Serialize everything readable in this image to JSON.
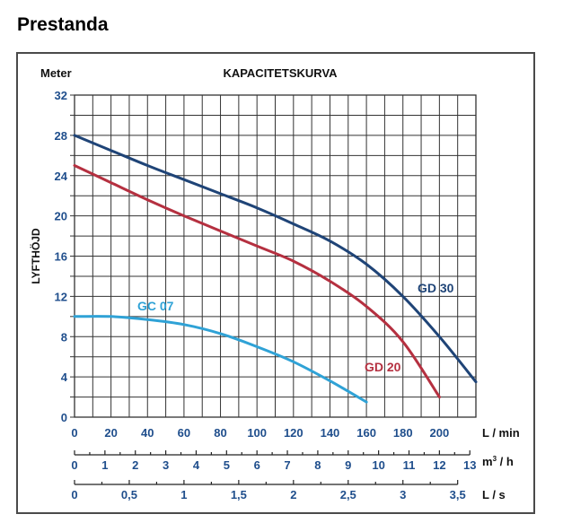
{
  "page": {
    "heading": "Prestanda"
  },
  "colors": {
    "gd30": "#1f4477",
    "gd20": "#b53040",
    "gc07": "#2fa2d6",
    "axis_text": "#1f4e8c",
    "grid": "#333333"
  },
  "chart_data": {
    "type": "line",
    "title": "KAPACITETSKURVA",
    "ylabel": "LYFTHÖJD",
    "yunit": "Meter",
    "ylim": [
      0,
      32
    ],
    "xlim": [
      0,
      220
    ],
    "yticks": [
      "0",
      "4",
      "8",
      "12",
      "16",
      "20",
      "24",
      "28",
      "32"
    ],
    "xticks": [
      "0",
      "20",
      "40",
      "60",
      "80",
      "100",
      "120",
      "140",
      "160",
      "180",
      "200"
    ],
    "xunit": "L / min",
    "secondary_axes": [
      {
        "unit": "m3 / h",
        "unit_base": "m",
        "unit_sup": "3",
        "unit_rest": " / h",
        "factor": 16.6667,
        "ticks": [
          "0",
          "1",
          "2",
          "3",
          "4",
          "5",
          "6",
          "7",
          "8",
          "9",
          "10",
          "11",
          "12",
          "13"
        ]
      },
      {
        "unit": "L / s",
        "factor": 60,
        "ticks": [
          "0",
          "0,5",
          "1",
          "1,5",
          "2",
          "2,5",
          "3",
          "3,5"
        ]
      }
    ],
    "series": [
      {
        "name": "GD 30",
        "color": "#1f4477",
        "x": [
          0,
          20,
          40,
          60,
          80,
          100,
          120,
          140,
          160,
          180,
          200,
          220
        ],
        "y": [
          28,
          26.5,
          25,
          23.6,
          22.2,
          20.8,
          19.2,
          17.5,
          15.2,
          12,
          8,
          3.5
        ]
      },
      {
        "name": "GD 20",
        "color": "#b53040",
        "x": [
          0,
          20,
          40,
          60,
          80,
          100,
          120,
          140,
          160,
          180,
          200
        ],
        "y": [
          25,
          23.3,
          21.6,
          20,
          18.5,
          17,
          15.5,
          13.5,
          11,
          7.5,
          2
        ]
      },
      {
        "name": "GC 07",
        "color": "#2fa2d6",
        "x": [
          0,
          20,
          40,
          60,
          80,
          100,
          120,
          140,
          160
        ],
        "y": [
          10,
          10,
          9.7,
          9.2,
          8.3,
          7,
          5.5,
          3.6,
          1.5
        ]
      }
    ],
    "labels": {
      "gd30": "GD 30",
      "gd20": "GD 20",
      "gc07": "GC 07"
    }
  }
}
